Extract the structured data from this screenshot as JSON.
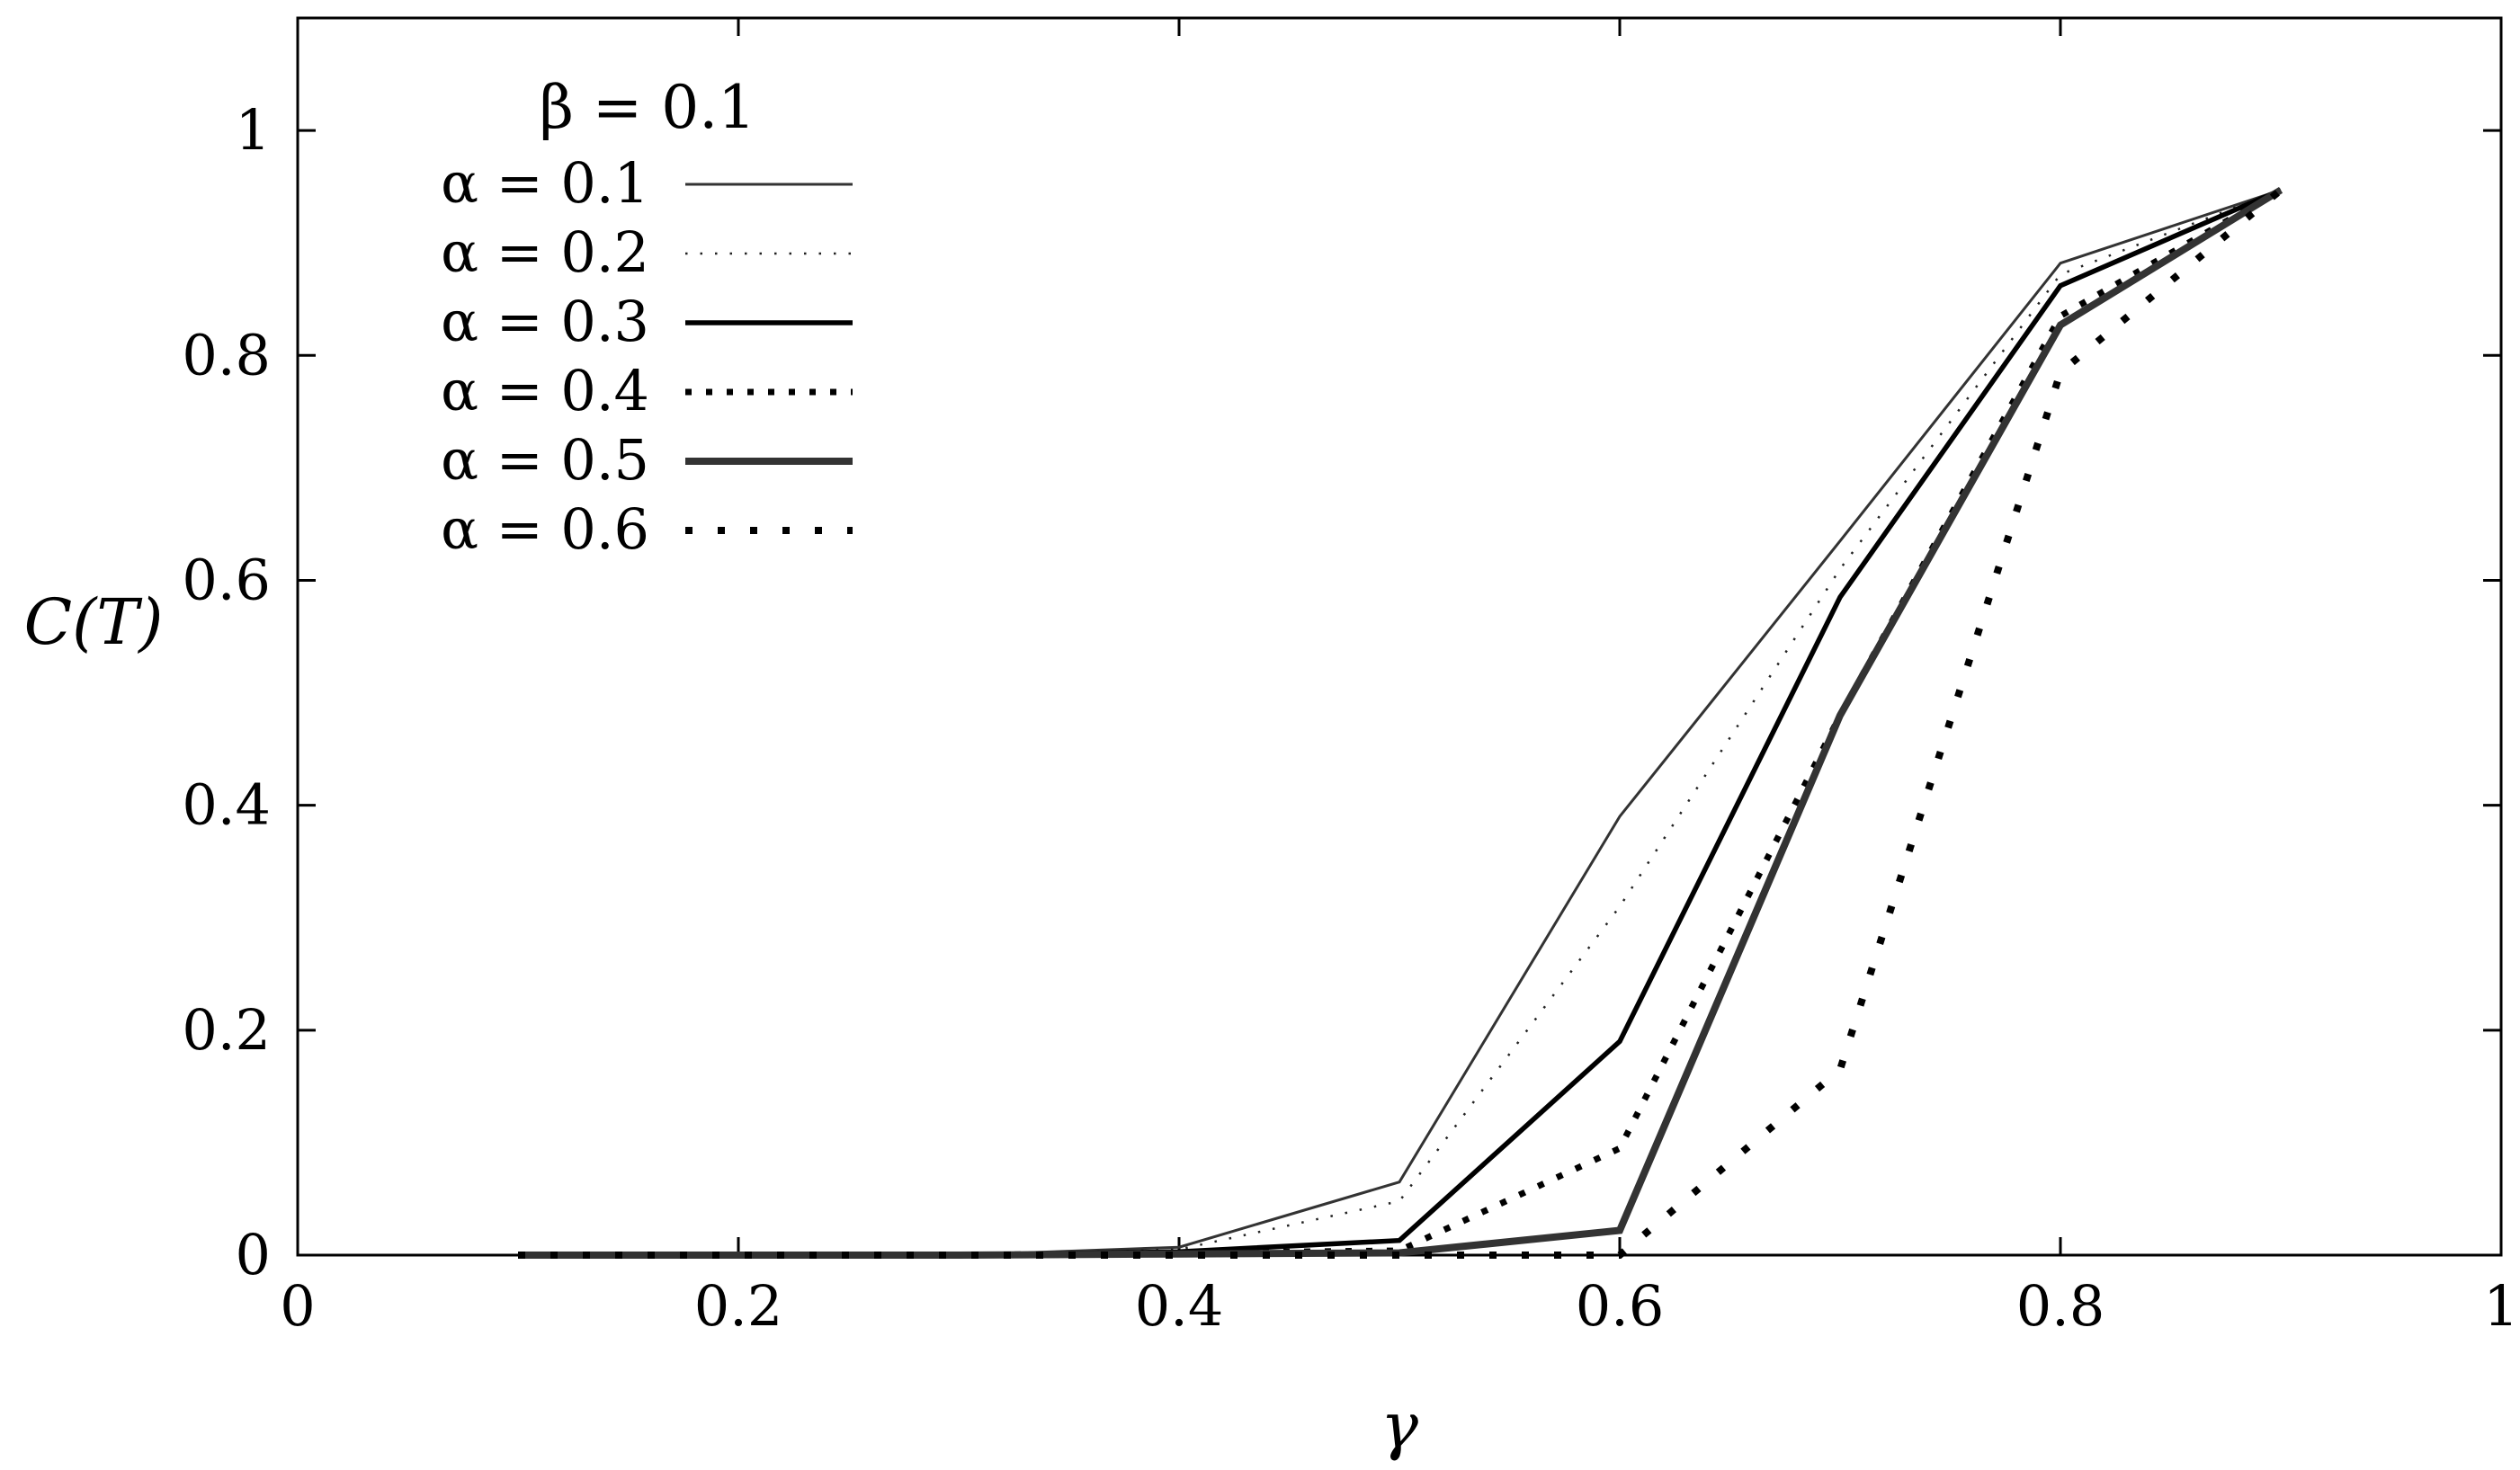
{
  "chart_data": {
    "type": "line",
    "title": "",
    "xlabel": "γ",
    "ylabel": "C(T)",
    "xlim": [
      0,
      1
    ],
    "ylim": [
      0,
      1.1
    ],
    "xticks": [
      0,
      0.2,
      0.4,
      0.6,
      0.8,
      1
    ],
    "xtick_labels": [
      "0",
      "0.2",
      "0.4",
      "0.6",
      "0.8",
      "1"
    ],
    "yticks": [
      0,
      0.2,
      0.4,
      0.6,
      0.8,
      1
    ],
    "ytick_labels": [
      "0",
      "0.2",
      "0.4",
      "0.6",
      "0.8",
      "1"
    ],
    "grid": false,
    "legend_position": "top-left",
    "legend_title": "β = 0.1",
    "x": [
      0.1,
      0.2,
      0.3,
      0.4,
      0.5,
      0.6,
      0.7,
      0.8,
      0.9
    ],
    "series": [
      {
        "name": "α = 0.1",
        "style": "thin-solid",
        "values": [
          0,
          0,
          0,
          0.007,
          0.065,
          0.39,
          0.635,
          0.882,
          0.947
        ]
      },
      {
        "name": "α = 0.2",
        "style": "fine-dotted",
        "values": [
          0,
          0,
          0,
          0.005,
          0.048,
          0.31,
          0.61,
          0.872,
          0.947
        ]
      },
      {
        "name": "α = 0.3",
        "style": "solid",
        "values": [
          0,
          0,
          0,
          0.003,
          0.013,
          0.19,
          0.585,
          0.862,
          0.947
        ]
      },
      {
        "name": "α = 0.4",
        "style": "dotted",
        "values": [
          0,
          0,
          0,
          0.002,
          0.004,
          0.095,
          0.48,
          0.835,
          0.947
        ]
      },
      {
        "name": "α = 0.5",
        "style": "thick-solid",
        "values": [
          0,
          0,
          0,
          0.001,
          0.002,
          0.022,
          0.48,
          0.827,
          0.947
        ]
      },
      {
        "name": "α = 0.6",
        "style": "sparse-dotted",
        "values": [
          0,
          0,
          0,
          0,
          0,
          0,
          0.165,
          0.785,
          0.947
        ]
      }
    ]
  }
}
